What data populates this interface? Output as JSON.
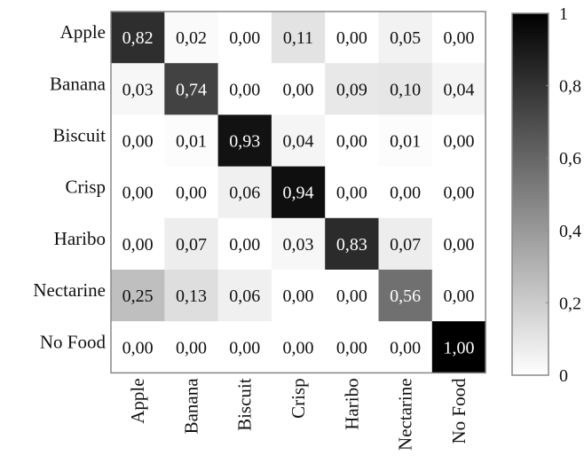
{
  "chart_data": {
    "type": "heatmap",
    "title": "",
    "xlabel": "",
    "ylabel": "",
    "row_labels": [
      "Apple",
      "Banana",
      "Biscuit",
      "Crisp",
      "Haribo",
      "Nectarine",
      "No Food"
    ],
    "col_labels": [
      "Apple",
      "Banana",
      "Biscuit",
      "Crisp",
      "Haribo",
      "Nectarine",
      "No Food"
    ],
    "values": [
      [
        0.82,
        0.02,
        0.0,
        0.11,
        0.0,
        0.05,
        0.0
      ],
      [
        0.03,
        0.74,
        0.0,
        0.0,
        0.09,
        0.1,
        0.04
      ],
      [
        0.0,
        0.01,
        0.93,
        0.04,
        0.0,
        0.01,
        0.0
      ],
      [
        0.0,
        0.0,
        0.06,
        0.94,
        0.0,
        0.0,
        0.0
      ],
      [
        0.0,
        0.07,
        0.0,
        0.03,
        0.83,
        0.07,
        0.0
      ],
      [
        0.25,
        0.13,
        0.06,
        0.0,
        0.0,
        0.56,
        0.0
      ],
      [
        0.0,
        0.0,
        0.0,
        0.0,
        0.0,
        0.0,
        1.0
      ]
    ],
    "value_labels": [
      [
        "0,82",
        "0,02",
        "0,00",
        "0,11",
        "0,00",
        "0,05",
        "0,00"
      ],
      [
        "0,03",
        "0,74",
        "0,00",
        "0,00",
        "0,09",
        "0,10",
        "0,04"
      ],
      [
        "0,00",
        "0,01",
        "0,93",
        "0,04",
        "0,00",
        "0,01",
        "0,00"
      ],
      [
        "0,00",
        "0,00",
        "0,06",
        "0,94",
        "0,00",
        "0,00",
        "0,00"
      ],
      [
        "0,00",
        "0,07",
        "0,00",
        "0,03",
        "0,83",
        "0,07",
        "0,00"
      ],
      [
        "0,25",
        "0,13",
        "0,06",
        "0,00",
        "0,00",
        "0,56",
        "0,00"
      ],
      [
        "0,00",
        "0,00",
        "0,00",
        "0,00",
        "0,00",
        "0,00",
        "1,00"
      ]
    ],
    "colorbar": {
      "range": [
        0,
        1
      ],
      "ticks": [
        0,
        0.2,
        0.4,
        0.6,
        0.8,
        1
      ],
      "tick_labels": [
        "0",
        "0,2",
        "0,4",
        "0,6",
        "0,8",
        "1"
      ],
      "colors": [
        "#ffffff",
        "#000000"
      ]
    }
  }
}
